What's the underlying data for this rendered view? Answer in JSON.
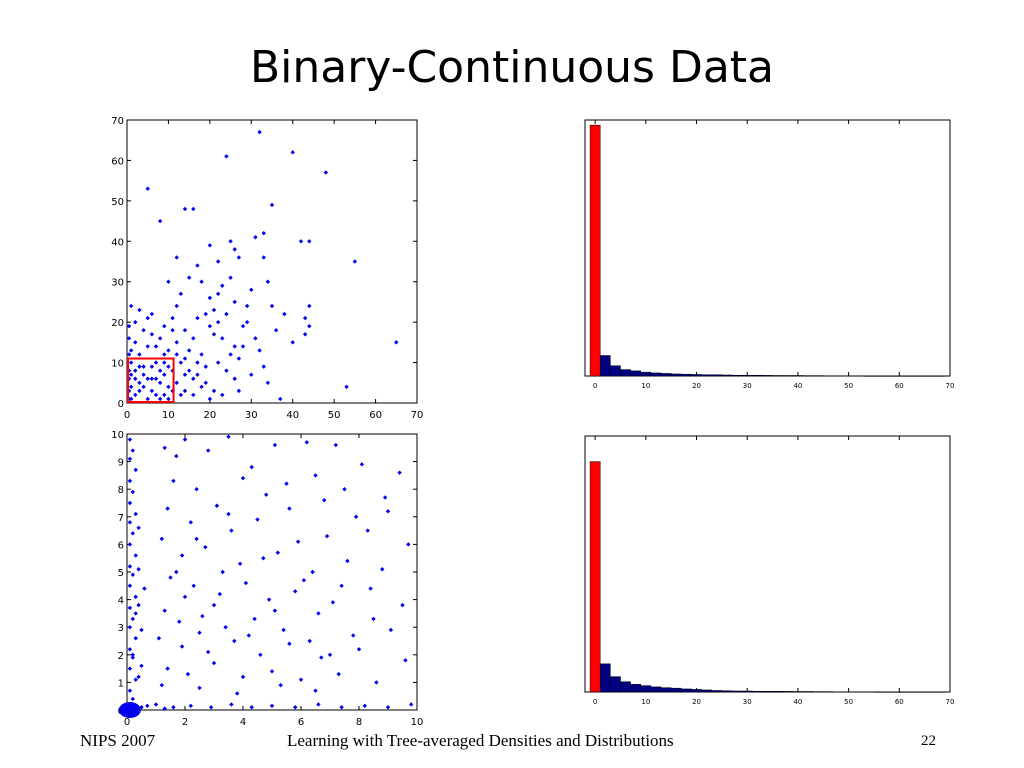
{
  "slide": {
    "title": "Binary-Continuous Data",
    "footer_left": "NIPS 2007",
    "footer_center": "Learning with Tree-averaged Densities and Distributions",
    "page_number": "22"
  },
  "colors": {
    "points": "#0000ee",
    "highlight": "#ff0000",
    "bars": "#000080",
    "first_bar": "#ff0000"
  },
  "chart_data": [
    {
      "type": "scatter",
      "title": "",
      "xlabel": "",
      "ylabel": "",
      "xlim": [
        0,
        70
      ],
      "ylim": [
        0,
        70
      ],
      "xticks": [
        0,
        10,
        20,
        30,
        40,
        50,
        60,
        70
      ],
      "yticks": [
        0,
        10,
        20,
        30,
        40,
        50,
        60,
        70
      ],
      "highlight_box": {
        "x": [
          0,
          11
        ],
        "y": [
          0,
          11
        ]
      },
      "points": [
        [
          32,
          67
        ],
        [
          24,
          61
        ],
        [
          40,
          62
        ],
        [
          48,
          57
        ],
        [
          5,
          53
        ],
        [
          8,
          45
        ],
        [
          14,
          48
        ],
        [
          16,
          48
        ],
        [
          35,
          49
        ],
        [
          42,
          40
        ],
        [
          44,
          40
        ],
        [
          25,
          40
        ],
        [
          26,
          38
        ],
        [
          31,
          41
        ],
        [
          27,
          36
        ],
        [
          20,
          39
        ],
        [
          33,
          36
        ],
        [
          33,
          42
        ],
        [
          22,
          35
        ],
        [
          25,
          31
        ],
        [
          34,
          30
        ],
        [
          55,
          35
        ],
        [
          44,
          24
        ],
        [
          43,
          21
        ],
        [
          44,
          19
        ],
        [
          40,
          15
        ],
        [
          43,
          17
        ],
        [
          65,
          15
        ],
        [
          53,
          4
        ],
        [
          37,
          1
        ],
        [
          30,
          28
        ],
        [
          29,
          24
        ],
        [
          22,
          27
        ],
        [
          23,
          29
        ],
        [
          20,
          26
        ],
        [
          19,
          22
        ],
        [
          17,
          21
        ],
        [
          18,
          30
        ],
        [
          17,
          34
        ],
        [
          15,
          31
        ],
        [
          13,
          27
        ],
        [
          12,
          24
        ],
        [
          11,
          21
        ],
        [
          9,
          19
        ],
        [
          14,
          18
        ],
        [
          16,
          16
        ],
        [
          20,
          19
        ],
        [
          21,
          17
        ],
        [
          23,
          16
        ],
        [
          26,
          14
        ],
        [
          27,
          11
        ],
        [
          28,
          19
        ],
        [
          31,
          16
        ],
        [
          29,
          20
        ],
        [
          24,
          22
        ],
        [
          12,
          36
        ],
        [
          10,
          30
        ],
        [
          15,
          13
        ],
        [
          18,
          12
        ],
        [
          19,
          9
        ],
        [
          22,
          10
        ],
        [
          24,
          8
        ],
        [
          26,
          6
        ],
        [
          30,
          7
        ],
        [
          33,
          9
        ],
        [
          34,
          5
        ],
        [
          27,
          3
        ],
        [
          23,
          2
        ],
        [
          20,
          1
        ],
        [
          18,
          4
        ],
        [
          16,
          6
        ],
        [
          14,
          3
        ],
        [
          1,
          24
        ],
        [
          3,
          23
        ],
        [
          5,
          21
        ],
        [
          2,
          20
        ],
        [
          4,
          18
        ],
        [
          6,
          17
        ],
        [
          8,
          16
        ],
        [
          7,
          14
        ],
        [
          10,
          13
        ],
        [
          12,
          15
        ],
        [
          9,
          12
        ],
        [
          13,
          10
        ],
        [
          15,
          8
        ],
        [
          17,
          7
        ],
        [
          19,
          5
        ],
        [
          21,
          3
        ],
        [
          11,
          18
        ],
        [
          6,
          22
        ],
        [
          2,
          15
        ],
        [
          1,
          13
        ],
        [
          3,
          12
        ],
        [
          5,
          14
        ],
        [
          25,
          12
        ],
        [
          28,
          14
        ],
        [
          32,
          13
        ],
        [
          36,
          18
        ],
        [
          38,
          22
        ],
        [
          35,
          24
        ],
        [
          22,
          20
        ],
        [
          21,
          23
        ],
        [
          26,
          25
        ],
        [
          2,
          2
        ],
        [
          3,
          5
        ],
        [
          1,
          7
        ],
        [
          4,
          9
        ],
        [
          6,
          3
        ],
        [
          7,
          6
        ],
        [
          8,
          8
        ],
        [
          9,
          2
        ],
        [
          10,
          4
        ],
        [
          1,
          1
        ],
        [
          5,
          6
        ],
        [
          2,
          8
        ],
        [
          3,
          3
        ],
        [
          6,
          9
        ],
        [
          8,
          1
        ],
        [
          9,
          7
        ],
        [
          4,
          4
        ],
        [
          7,
          10
        ],
        [
          1,
          10
        ],
        [
          10,
          9
        ],
        [
          2,
          6
        ],
        [
          5,
          1
        ],
        [
          3,
          9
        ],
        [
          6,
          6
        ],
        [
          9,
          10
        ],
        [
          7,
          2
        ],
        [
          4,
          7
        ],
        [
          8,
          5
        ],
        [
          10,
          1
        ],
        [
          1,
          4
        ],
        [
          0.5,
          3
        ],
        [
          0.5,
          8
        ],
        [
          0.5,
          12
        ],
        [
          0.5,
          16
        ],
        [
          0.5,
          19
        ],
        [
          0.5,
          6
        ],
        [
          0.5,
          1
        ],
        [
          12,
          5
        ],
        [
          13,
          2
        ],
        [
          11,
          8
        ],
        [
          14,
          11
        ],
        [
          16,
          2
        ],
        [
          17,
          10
        ],
        [
          12,
          12
        ],
        [
          14,
          7
        ],
        [
          11,
          3
        ]
      ]
    },
    {
      "type": "bar",
      "title": "",
      "xlabel": "",
      "ylabel": "",
      "xlim": [
        -2,
        70
      ],
      "ylim": [
        0,
        100
      ],
      "xticks": [
        0,
        10,
        20,
        30,
        40,
        50,
        60,
        70
      ],
      "bin_width": 2,
      "categories": [
        0,
        2,
        4,
        6,
        8,
        10,
        12,
        14,
        16,
        18,
        20,
        22,
        24,
        26,
        28,
        30,
        32,
        34,
        36,
        38,
        40,
        42,
        44,
        46,
        48,
        50,
        52,
        54,
        56,
        58,
        60,
        62,
        64,
        66,
        68
      ],
      "values": [
        98,
        8,
        4,
        2.5,
        2,
        1.5,
        1.2,
        1,
        0.8,
        0.7,
        0.6,
        0.5,
        0.5,
        0.4,
        0.3,
        0.3,
        0.3,
        0.25,
        0.2,
        0.2,
        0.2,
        0.15,
        0.15,
        0.1,
        0.1,
        0.1,
        0.1,
        0.05,
        0.05,
        0.05,
        0.05,
        0.05,
        0.05,
        0.05,
        0.05
      ]
    },
    {
      "type": "scatter",
      "title": "",
      "xlabel": "",
      "ylabel": "",
      "xlim": [
        0,
        10
      ],
      "ylim": [
        0,
        10
      ],
      "xticks": [
        0,
        2,
        4,
        6,
        8,
        10
      ],
      "yticks": [
        0,
        1,
        2,
        3,
        4,
        5,
        6,
        7,
        8,
        9,
        10
      ],
      "points": [
        [
          0.1,
          9.8
        ],
        [
          0.2,
          9.4
        ],
        [
          0.1,
          9.1
        ],
        [
          0.3,
          8.7
        ],
        [
          0.1,
          8.3
        ],
        [
          0.2,
          7.9
        ],
        [
          0.1,
          7.5
        ],
        [
          0.3,
          7.1
        ],
        [
          0.1,
          6.8
        ],
        [
          0.2,
          6.4
        ],
        [
          0.1,
          6.0
        ],
        [
          0.3,
          5.6
        ],
        [
          0.1,
          5.2
        ],
        [
          0.2,
          4.9
        ],
        [
          0.1,
          4.5
        ],
        [
          0.3,
          4.1
        ],
        [
          0.1,
          3.7
        ],
        [
          0.2,
          3.3
        ],
        [
          0.1,
          3.0
        ],
        [
          0.3,
          2.6
        ],
        [
          0.1,
          2.2
        ],
        [
          0.2,
          1.9
        ],
        [
          0.1,
          1.5
        ],
        [
          0.3,
          1.1
        ],
        [
          0.1,
          0.7
        ],
        [
          0.2,
          0.4
        ],
        [
          0.4,
          3.8
        ],
        [
          0.5,
          2.9
        ],
        [
          0.4,
          5.1
        ],
        [
          0.5,
          1.6
        ],
        [
          0.4,
          6.6
        ],
        [
          0.6,
          4.4
        ],
        [
          0.2,
          2.0
        ],
        [
          0.3,
          3.5
        ],
        [
          0.4,
          1.2
        ],
        [
          1.3,
          9.5
        ],
        [
          1.7,
          9.2
        ],
        [
          2.0,
          9.8
        ],
        [
          2.8,
          9.4
        ],
        [
          3.5,
          9.9
        ],
        [
          4.3,
          8.8
        ],
        [
          5.1,
          9.6
        ],
        [
          6.2,
          9.7
        ],
        [
          7.2,
          9.6
        ],
        [
          8.1,
          8.9
        ],
        [
          9.4,
          8.6
        ],
        [
          1.6,
          8.3
        ],
        [
          2.4,
          8.0
        ],
        [
          3.1,
          7.4
        ],
        [
          4.8,
          7.8
        ],
        [
          5.5,
          8.2
        ],
        [
          6.8,
          7.6
        ],
        [
          7.9,
          7.0
        ],
        [
          9.0,
          7.2
        ],
        [
          1.4,
          7.3
        ],
        [
          2.2,
          6.8
        ],
        [
          3.6,
          6.5
        ],
        [
          4.5,
          6.9
        ],
        [
          5.9,
          6.1
        ],
        [
          6.9,
          6.3
        ],
        [
          8.3,
          6.5
        ],
        [
          9.7,
          6.0
        ],
        [
          1.2,
          6.2
        ],
        [
          1.9,
          5.6
        ],
        [
          2.7,
          5.9
        ],
        [
          3.9,
          5.3
        ],
        [
          5.2,
          5.7
        ],
        [
          6.4,
          5.0
        ],
        [
          7.6,
          5.4
        ],
        [
          8.8,
          5.1
        ],
        [
          1.5,
          4.8
        ],
        [
          2.3,
          4.5
        ],
        [
          3.2,
          4.2
        ],
        [
          4.1,
          4.6
        ],
        [
          4.9,
          4.0
        ],
        [
          5.8,
          4.3
        ],
        [
          7.1,
          3.9
        ],
        [
          8.4,
          4.4
        ],
        [
          9.5,
          3.8
        ],
        [
          1.3,
          3.6
        ],
        [
          1.8,
          3.2
        ],
        [
          2.6,
          3.4
        ],
        [
          3.4,
          3.0
        ],
        [
          4.4,
          3.3
        ],
        [
          5.4,
          2.9
        ],
        [
          6.6,
          3.5
        ],
        [
          7.8,
          2.7
        ],
        [
          9.1,
          2.9
        ],
        [
          1.1,
          2.6
        ],
        [
          1.9,
          2.3
        ],
        [
          2.8,
          2.1
        ],
        [
          3.7,
          2.5
        ],
        [
          4.6,
          2.0
        ],
        [
          5.6,
          2.4
        ],
        [
          6.7,
          1.9
        ],
        [
          8.0,
          2.2
        ],
        [
          9.6,
          1.8
        ],
        [
          1.4,
          1.5
        ],
        [
          2.1,
          1.3
        ],
        [
          3.0,
          1.7
        ],
        [
          4.0,
          1.2
        ],
        [
          5.0,
          1.4
        ],
        [
          6.0,
          1.1
        ],
        [
          7.3,
          1.3
        ],
        [
          8.6,
          1.0
        ],
        [
          1.2,
          0.9
        ],
        [
          2.5,
          0.8
        ],
        [
          3.8,
          0.6
        ],
        [
          5.3,
          0.9
        ],
        [
          6.5,
          0.7
        ],
        [
          1.0,
          0.2
        ],
        [
          1.6,
          0.1
        ],
        [
          2.2,
          0.15
        ],
        [
          2.9,
          0.1
        ],
        [
          3.6,
          0.2
        ],
        [
          4.3,
          0.1
        ],
        [
          5.0,
          0.15
        ],
        [
          5.8,
          0.1
        ],
        [
          6.6,
          0.2
        ],
        [
          7.4,
          0.1
        ],
        [
          8.2,
          0.15
        ],
        [
          9.0,
          0.1
        ],
        [
          9.8,
          0.2
        ],
        [
          0.5,
          0.1
        ],
        [
          0.7,
          0.15
        ],
        [
          1.3,
          0.05
        ],
        [
          3.3,
          5.0
        ],
        [
          4.7,
          5.5
        ],
        [
          6.1,
          4.7
        ],
        [
          7.4,
          4.5
        ],
        [
          2.0,
          4.1
        ],
        [
          3.0,
          3.8
        ],
        [
          2.5,
          2.8
        ],
        [
          4.2,
          2.7
        ],
        [
          5.1,
          3.6
        ],
        [
          6.3,
          2.5
        ],
        [
          7.0,
          2.0
        ],
        [
          8.5,
          3.3
        ],
        [
          1.7,
          5.0
        ],
        [
          2.4,
          6.2
        ],
        [
          3.5,
          7.1
        ],
        [
          4.0,
          8.4
        ],
        [
          5.6,
          7.3
        ],
        [
          6.5,
          8.5
        ],
        [
          7.5,
          8.0
        ],
        [
          8.9,
          7.7
        ]
      ]
    },
    {
      "type": "bar",
      "title": "",
      "xlabel": "",
      "ylabel": "",
      "xlim": [
        -2,
        70
      ],
      "ylim": [
        0,
        100
      ],
      "xticks": [
        0,
        10,
        20,
        30,
        40,
        50,
        60,
        70
      ],
      "bin_width": 2,
      "categories": [
        0,
        2,
        4,
        6,
        8,
        10,
        12,
        14,
        16,
        18,
        20,
        22,
        24,
        26,
        28,
        30,
        32,
        34,
        36,
        38,
        40,
        42,
        44,
        46,
        48,
        50,
        52,
        54,
        56,
        58,
        60,
        62,
        64,
        66,
        68
      ],
      "values": [
        90,
        11,
        6,
        4,
        3,
        2.5,
        2,
        1.7,
        1.5,
        1.2,
        1,
        0.8,
        0.6,
        0.5,
        0.4,
        0.4,
        0.3,
        0.3,
        0.3,
        0.25,
        0.2,
        0.2,
        0.15,
        0.15,
        0.1,
        0.1,
        0.1,
        0.1,
        0.05,
        0.05,
        0.05,
        0.05,
        0.05,
        0.05,
        0.05
      ]
    }
  ]
}
